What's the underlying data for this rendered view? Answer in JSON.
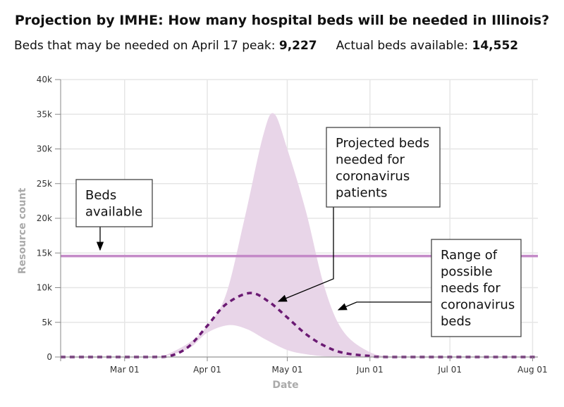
{
  "chart_data": {
    "type": "area",
    "title": "Projection by IMHE: How many hospital beds will be needed in Illinois?",
    "subtitle": {
      "peak_label": "Beds that may be needed on April 17 peak:",
      "peak_value": "9,227",
      "avail_label": "Actual beds available:",
      "avail_value": "14,552"
    },
    "xlabel": "Date",
    "ylabel": "Resource count",
    "xlim": [
      "2020-02-06",
      "2020-08-03"
    ],
    "ylim": [
      0,
      40000
    ],
    "yticks": [
      0,
      5000,
      10000,
      15000,
      20000,
      25000,
      30000,
      35000,
      40000
    ],
    "ytick_labels": [
      "0",
      "5k",
      "10k",
      "15k",
      "20k",
      "25k",
      "30k",
      "35k",
      "40k"
    ],
    "xticks": [
      "2020-03-01",
      "2020-04-01",
      "2020-05-01",
      "2020-06-01",
      "2020-07-01",
      "2020-08-01"
    ],
    "xtick_labels": [
      "Mar 01",
      "Apr 01",
      "May 01",
      "Jun 01",
      "Jul 01",
      "Aug 01"
    ],
    "grid": true,
    "beds_available": 14552,
    "colors": {
      "band": "#e8d5e8",
      "mean": "#6b1a73",
      "beds": "#c48ac8"
    },
    "mean": [
      [
        "2020-02-06",
        0
      ],
      [
        "2020-03-10",
        0
      ],
      [
        "2020-03-18",
        150
      ],
      [
        "2020-03-25",
        1500
      ],
      [
        "2020-04-01",
        4500
      ],
      [
        "2020-04-08",
        7600
      ],
      [
        "2020-04-17",
        9227
      ],
      [
        "2020-04-24",
        8000
      ],
      [
        "2020-05-01",
        5700
      ],
      [
        "2020-05-08",
        3300
      ],
      [
        "2020-05-15",
        1600
      ],
      [
        "2020-05-22",
        600
      ],
      [
        "2020-06-01",
        150
      ],
      [
        "2020-06-10",
        0
      ],
      [
        "2020-08-03",
        0
      ]
    ],
    "lower": [
      [
        "2020-03-15",
        0
      ],
      [
        "2020-03-25",
        1200
      ],
      [
        "2020-04-01",
        3500
      ],
      [
        "2020-04-09",
        4600
      ],
      [
        "2020-04-16",
        4000
      ],
      [
        "2020-04-23",
        2500
      ],
      [
        "2020-05-01",
        1000
      ],
      [
        "2020-05-08",
        400
      ],
      [
        "2020-05-15",
        100
      ],
      [
        "2020-05-25",
        0
      ]
    ],
    "upper": [
      [
        "2020-03-15",
        0
      ],
      [
        "2020-03-25",
        2000
      ],
      [
        "2020-04-01",
        4500
      ],
      [
        "2020-04-08",
        9000
      ],
      [
        "2020-04-15",
        20000
      ],
      [
        "2020-04-22",
        32000
      ],
      [
        "2020-04-26",
        35100
      ],
      [
        "2020-05-01",
        30000
      ],
      [
        "2020-05-08",
        21000
      ],
      [
        "2020-05-15",
        10000
      ],
      [
        "2020-05-22",
        3700
      ],
      [
        "2020-06-01",
        700
      ],
      [
        "2020-06-10",
        0
      ]
    ],
    "annotations": [
      {
        "lines": [
          "Beds",
          "available"
        ]
      },
      {
        "lines": [
          "Projected beds",
          "needed for",
          "coronavirus",
          "patients"
        ]
      },
      {
        "lines": [
          "Range of",
          "possible",
          "needs for",
          "coronavirus",
          "beds"
        ]
      }
    ]
  }
}
